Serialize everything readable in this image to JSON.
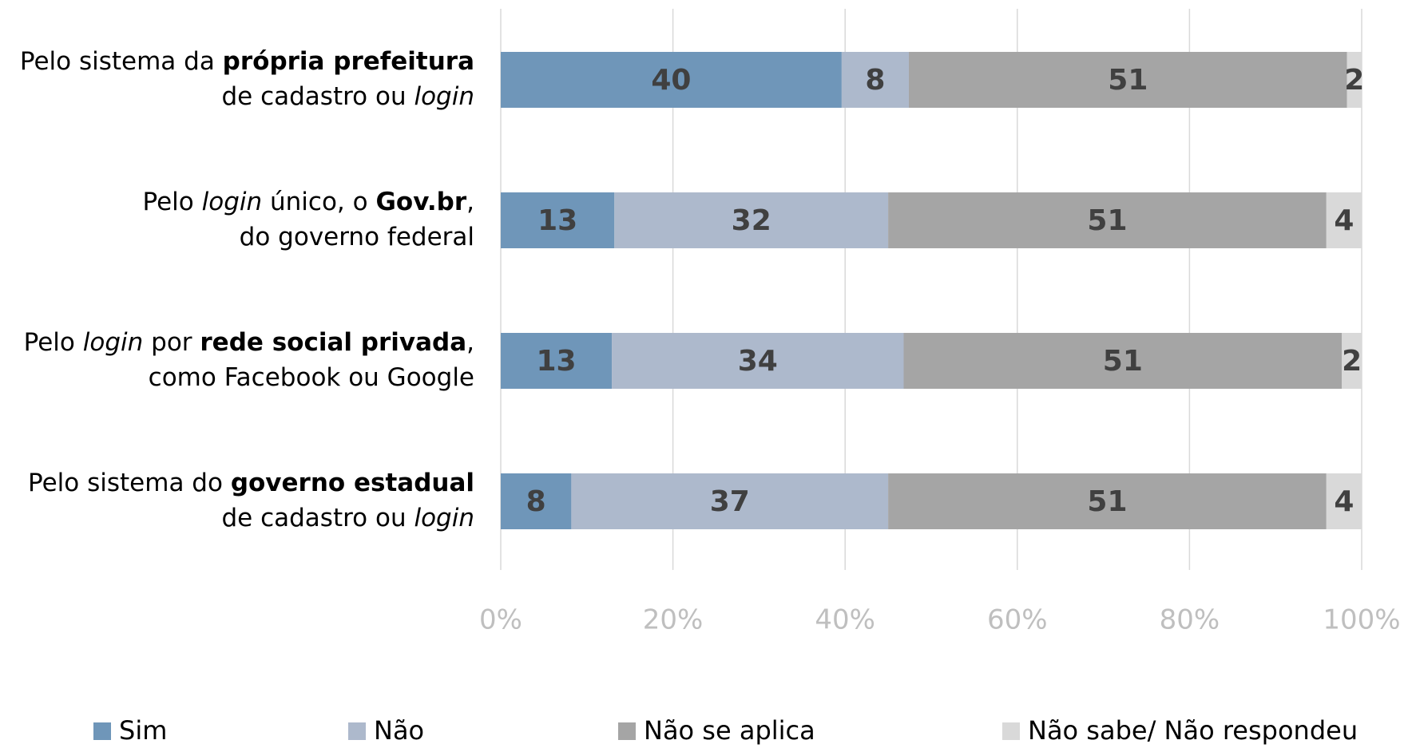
{
  "chart_data": {
    "type": "stacked-bar-horizontal",
    "categories": [
      [
        [
          {
            "text": "Pelo sistema da ",
            "weight": "normal",
            "style": "normal"
          },
          {
            "text": "própria prefeitura",
            "weight": "bold",
            "style": "normal"
          }
        ],
        [
          {
            "text": "de cadastro ou ",
            "weight": "normal",
            "style": "normal"
          },
          {
            "text": "login",
            "weight": "normal",
            "style": "italic"
          }
        ]
      ],
      [
        [
          {
            "text": "Pelo ",
            "weight": "normal",
            "style": "normal"
          },
          {
            "text": "login",
            "weight": "normal",
            "style": "italic"
          },
          {
            "text": " único, o ",
            "weight": "normal",
            "style": "normal"
          },
          {
            "text": "Gov.br",
            "weight": "bold",
            "style": "normal"
          },
          {
            "text": ",",
            "weight": "normal",
            "style": "normal"
          }
        ],
        [
          {
            "text": "do governo federal",
            "weight": "normal",
            "style": "normal"
          }
        ]
      ],
      [
        [
          {
            "text": "Pelo ",
            "weight": "normal",
            "style": "normal"
          },
          {
            "text": "login",
            "weight": "normal",
            "style": "italic"
          },
          {
            "text": " por ",
            "weight": "normal",
            "style": "normal"
          },
          {
            "text": "rede social privada",
            "weight": "bold",
            "style": "normal"
          },
          {
            "text": ",",
            "weight": "normal",
            "style": "normal"
          }
        ],
        [
          {
            "text": "como Facebook ou Google",
            "weight": "normal",
            "style": "normal"
          }
        ]
      ],
      [
        [
          {
            "text": "Pelo sistema do ",
            "weight": "normal",
            "style": "normal"
          },
          {
            "text": "governo estadual",
            "weight": "bold",
            "style": "normal"
          }
        ],
        [
          {
            "text": "de cadastro ou ",
            "weight": "normal",
            "style": "normal"
          },
          {
            "text": "login",
            "weight": "normal",
            "style": "italic"
          }
        ]
      ]
    ],
    "series": [
      {
        "name": "Sim",
        "color": "#6f96b9",
        "values": [
          39.6,
          13.2,
          12.9,
          8.2
        ],
        "value_labels": [
          "40",
          "13",
          "13",
          "8"
        ]
      },
      {
        "name": "Não",
        "color": "#adb9cc",
        "values": [
          7.8,
          31.8,
          33.9,
          36.8
        ],
        "value_labels": [
          "8",
          "32",
          "34",
          "37"
        ]
      },
      {
        "name": "Não se aplica",
        "color": "#a5a5a5",
        "values": [
          50.9,
          50.9,
          50.9,
          50.9
        ],
        "value_labels": [
          "51",
          "51",
          "51",
          "51"
        ]
      },
      {
        "name": "Não sabe/ Não respondeu",
        "color": "#d9d9d9",
        "values": [
          1.7,
          4.1,
          2.3,
          4.1
        ],
        "value_labels": [
          "2",
          "4",
          "2",
          "4"
        ]
      }
    ],
    "xlim": [
      0,
      100
    ],
    "xticks": [
      {
        "value": 0,
        "label": "0%"
      },
      {
        "value": 20,
        "label": "20%"
      },
      {
        "value": 40,
        "label": "40%"
      },
      {
        "value": 60,
        "label": "60%"
      },
      {
        "value": 80,
        "label": "80%"
      },
      {
        "value": 100,
        "label": "100%"
      }
    ],
    "grid": true,
    "legend": "bottom"
  }
}
